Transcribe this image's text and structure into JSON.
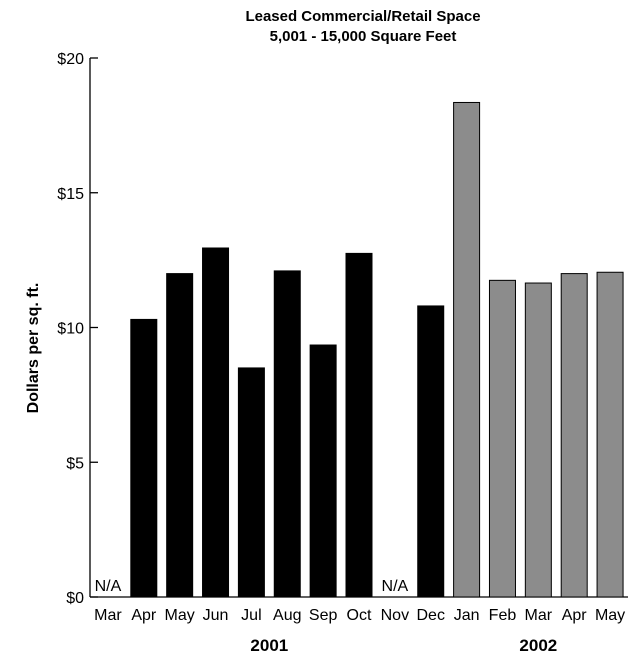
{
  "chart_data": {
    "type": "bar",
    "title": "Leased Commercial/Retail Space",
    "subtitle": "5,001 - 15,000 Square Feet",
    "ylabel": "Dollars per sq. ft.",
    "xlabel": "",
    "ylim": [
      0,
      20
    ],
    "yticks": [
      0,
      5,
      10,
      15,
      20
    ],
    "ytick_labels": [
      "$0",
      "$5",
      "$10",
      "$15",
      "$20"
    ],
    "grid": false,
    "legend": "none",
    "na_label": "N/A",
    "categories": [
      "Mar",
      "Apr",
      "May",
      "Jun",
      "Jul",
      "Aug",
      "Sep",
      "Oct",
      "Nov",
      "Dec",
      "Jan",
      "Feb",
      "Mar",
      "Apr",
      "May"
    ],
    "values": [
      null,
      10.3,
      12.0,
      12.95,
      8.5,
      12.1,
      9.35,
      12.75,
      null,
      10.8,
      18.35,
      11.75,
      11.65,
      12.0,
      12.05
    ],
    "year_groups": [
      {
        "label": "2001",
        "from": 0,
        "to": 9
      },
      {
        "label": "2002",
        "from": 10,
        "to": 14
      }
    ],
    "colors": {
      "2001": "#000000",
      "2002": "#8c8c8c",
      "edge": "#000000"
    }
  }
}
